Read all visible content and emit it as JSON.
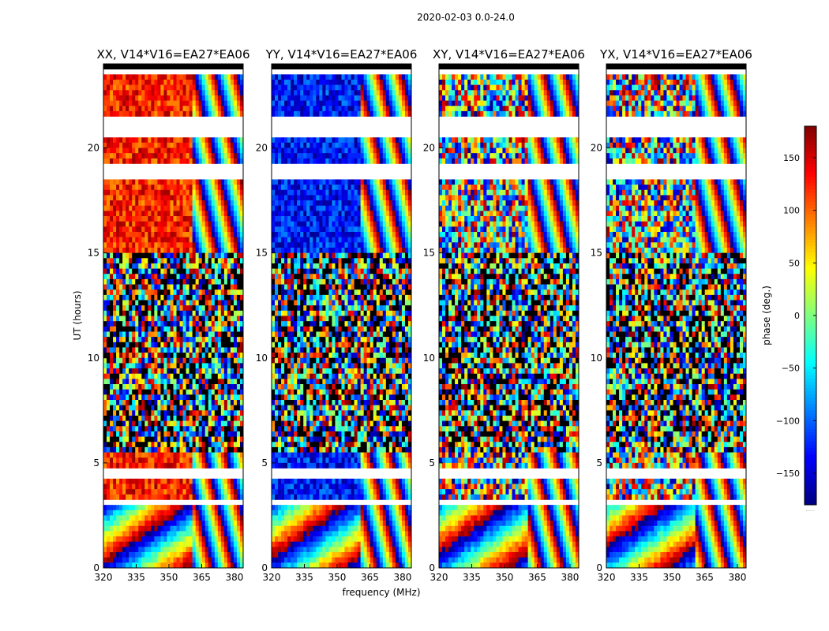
{
  "figure_title": "2020-02-03 0.0-24.0",
  "chart_data": {
    "type": "heatmap",
    "description_metric": "visibility phase vs frequency and time",
    "x_axis": {
      "label": "frequency (MHz)",
      "range": [
        320,
        384
      ],
      "ticks": [
        320,
        335,
        350,
        365,
        380
      ]
    },
    "y_axis": {
      "label": "UT (hours)",
      "range": [
        0,
        24
      ],
      "ticks": [
        0,
        5,
        10,
        15,
        20
      ]
    },
    "colorbar": {
      "label": "phase (deg.)",
      "range": [
        -180,
        180
      ],
      "ticks": [
        -150,
        -100,
        -50,
        0,
        50,
        100,
        150
      ],
      "colormap": "jet"
    },
    "panels": [
      {
        "title": "XX, V14*V16=EA27*EA06",
        "pol": "XX",
        "low_band_mean_phase_deg": 125
      },
      {
        "title": "YY, V14*V16=EA27*EA06",
        "pol": "YY",
        "low_band_mean_phase_deg": -130
      },
      {
        "title": "XY, V14*V16=EA27*EA06",
        "pol": "XY",
        "low_band_mean_phase_deg": null
      },
      {
        "title": "YX, V14*V16=EA27*EA06",
        "pol": "YX",
        "low_band_mean_phase_deg": null
      }
    ],
    "flagged_time_ranges_hours": [
      [
        23.6,
        23.9
      ],
      [
        21.0,
        21.6
      ],
      [
        20.5,
        21.0
      ],
      [
        18.6,
        19.3
      ],
      [
        4.2,
        4.65
      ],
      [
        3.1,
        3.3
      ]
    ],
    "coherent_fringe_onset_mhz": 361
  },
  "colorbar_extra_label": "....."
}
